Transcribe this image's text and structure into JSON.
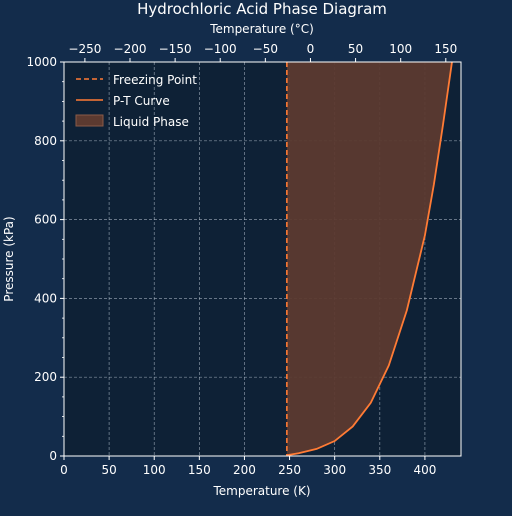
{
  "chart_data": {
    "type": "line",
    "title": "Hydrochloric Acid Phase Diagram",
    "xlabel": "Temperature (K)",
    "ylabel": "Pressure (kPa)",
    "secondary_xlabel": "Temperature (°C)",
    "xlim": [
      0,
      440
    ],
    "ylim": [
      0,
      1000
    ],
    "secondary_xlim": [
      -273.15,
      166.85
    ],
    "x_ticks": [
      0,
      50,
      100,
      150,
      200,
      250,
      300,
      350,
      400
    ],
    "y_ticks": [
      0,
      200,
      400,
      600,
      800,
      1000
    ],
    "secondary_x_ticks": [
      -250,
      -200,
      -150,
      -100,
      -50,
      0,
      50,
      100,
      150
    ],
    "grid": true,
    "legend_position": "top-left",
    "freezing_point": {
      "name": "Freezing Point",
      "x": 247.0,
      "color": "#ff7b35",
      "style": "dashed"
    },
    "series": [
      {
        "name": "P-T Curve",
        "color": "#ff7b35",
        "x": [
          247,
          260,
          280,
          300,
          320,
          340,
          360,
          380,
          400,
          410,
          420,
          430
        ],
        "y": [
          2,
          7,
          18,
          38,
          75,
          135,
          230,
          370,
          560,
          690,
          840,
          1000
        ]
      }
    ],
    "region": {
      "name": "Liquid Phase",
      "color": "#5c3a30",
      "from_x": 247.0,
      "bounded_by": "P-T Curve"
    }
  }
}
